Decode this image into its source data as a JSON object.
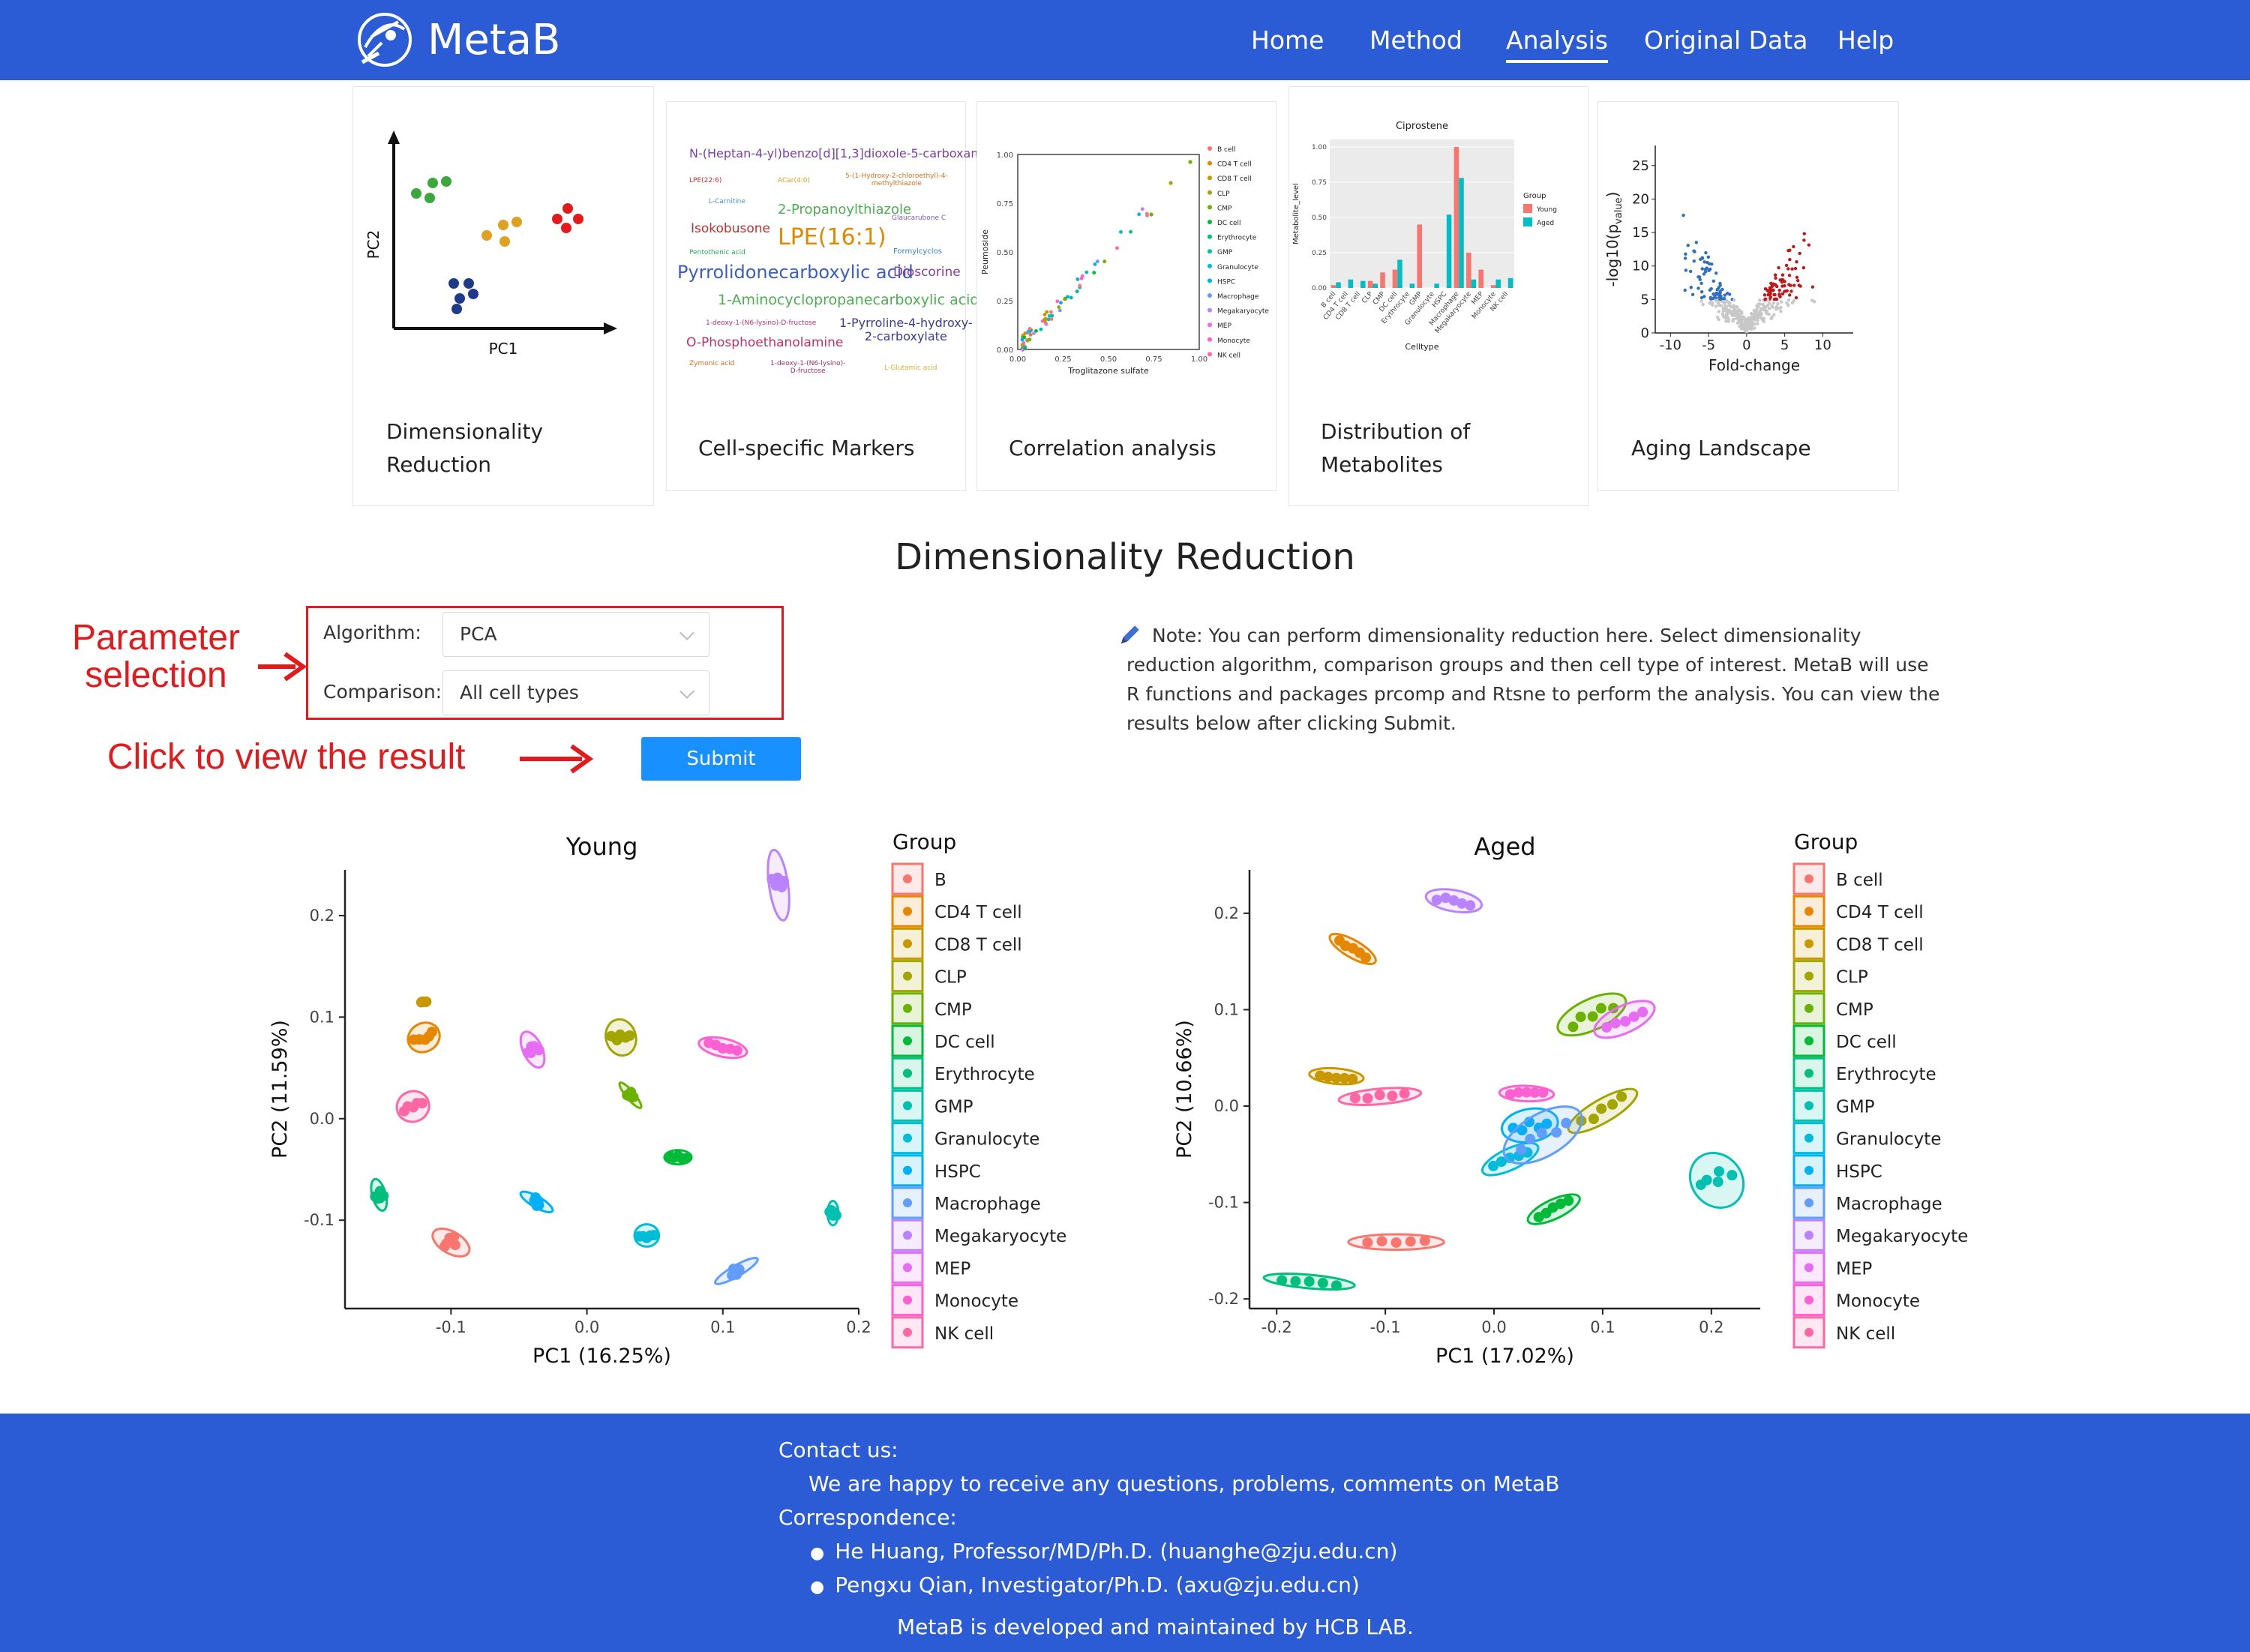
{
  "brand": {
    "name": "MetaB"
  },
  "nav": {
    "items": [
      "Home",
      "Method",
      "Analysis",
      "Original Data",
      "Help"
    ],
    "active": "Analysis"
  },
  "cards": [
    {
      "label": "Dimensionality\nReduction"
    },
    {
      "label": "Cell-specific Markers"
    },
    {
      "label": "Correlation analysis"
    },
    {
      "label": "Distribution of\nMetabolites"
    },
    {
      "label": "Aging Landscape"
    }
  ],
  "thumb_dr": {
    "xlabel": "PC1",
    "ylabel": "PC2"
  },
  "thumb_words": [
    "N-(Heptan-4-yl)benzo[d][1,3]dioxole-5-carboxamide",
    "LPE(22:6)",
    "ACar(4:0)",
    "5-(1-Hydroxy-2-chloroethyl)-4-\nmethylthiazole",
    "L-Carnitine",
    "2-Propanoylthiazole",
    "Glaucarubone C",
    "Isokobusone",
    "LPE(16:1)",
    "Pentothenic acid",
    "Formylcyclos",
    "Pyrrolidonecarboxylic acid",
    "Dioscorine",
    "1-Aminocyclopropanecarboxylic acid",
    "1-deoxy-1-(N6-lysino)-D-fructose",
    "1-Pyrroline-4-hydroxy-\n2-carboxylate",
    "O-Phosphoethanolamine",
    "Zymonic acid",
    "1-deoxy-1-(N6-lysino)-\nD-fructose",
    "L-Glutamic acid"
  ],
  "thumb_corr": {
    "xlabel": "Troglitazone sulfate",
    "ylabel": "Peumoside",
    "xticks": [
      "0.00",
      "0.25",
      "0.50",
      "0.75",
      "1.00"
    ],
    "yticks": [
      "0.00",
      "0.25",
      "0.50",
      "0.75",
      "1.00"
    ],
    "legend": [
      "B cell",
      "CD4 T cell",
      "CD8 T cell",
      "CLP",
      "CMP",
      "DC cell",
      "Erythrocyte",
      "GMP",
      "Granulocyte",
      "HSPC",
      "Macrophage",
      "Megakaryocyte",
      "MEP",
      "Monocyte",
      "NK cell"
    ]
  },
  "thumb_dist": {
    "title": "Ciprostene",
    "xlabel": "Celltype",
    "ylabel": "Metabolite_level",
    "yticks": [
      "0.00",
      "0.25",
      "0.50",
      "0.75",
      "1.00"
    ],
    "legend_title": "Group",
    "legend": [
      "Young",
      "Aged"
    ],
    "categories": [
      "B cell",
      "CD4 T cell",
      "CD8 T cell",
      "CLP",
      "CMP",
      "DC cell",
      "Erythrocyte",
      "GMP",
      "Granulocyte",
      "HSPC",
      "Macrophage",
      "Megakaryocyte",
      "MEP",
      "Monocyte",
      "NK cell"
    ],
    "young": [
      0.02,
      0.0,
      0.0,
      0.05,
      0.11,
      0.13,
      0.0,
      0.45,
      0.0,
      0.0,
      1.0,
      0.25,
      0.13,
      0.02,
      0.0
    ],
    "aged": [
      0.04,
      0.06,
      0.05,
      0.03,
      0.0,
      0.2,
      0.03,
      0.0,
      0.03,
      0.52,
      0.78,
      0.06,
      0.0,
      0.06,
      0.07
    ]
  },
  "thumb_volcano": {
    "xlabel": "Fold-change",
    "ylabel": "-log10(p",
    "ylabel_sub": "value",
    "ylabel_end": ")",
    "xticks": [
      "-10",
      "-5",
      "0",
      "5",
      "10"
    ],
    "yticks": [
      "0",
      "5",
      "10",
      "15",
      "20",
      "25"
    ]
  },
  "section_title": "Dimensionality Reduction",
  "form": {
    "algorithm_label": "Algorithm:",
    "algorithm_value": "PCA",
    "comparison_label": "Comparison:",
    "comparison_value": "All cell types",
    "submit_label": "Submit"
  },
  "annotations": {
    "param": "Parameter\nselection",
    "click": "Click to view the result"
  },
  "note": {
    "icon": "pencil-icon",
    "text": "Note: You can perform dimensionality reduction here. Select dimensionality reduction algorithm, comparison groups and then cell type of interest. MetaB will use R functions and packages prcomp and Rtsne to perform the analysis. You can view the results below after clicking Submit."
  },
  "colors": {
    "nav": "#2b5cd6",
    "button": "#1890ff",
    "annotation": "#e31a1c",
    "groups": [
      "#F8766D",
      "#E58700",
      "#C99800",
      "#A3A500",
      "#6BB100",
      "#00BA38",
      "#00BF7D",
      "#00C0AF",
      "#00BCD8",
      "#00B0F6",
      "#619CFF",
      "#B983FF",
      "#E76BF3",
      "#FD61D1",
      "#FF67A4"
    ]
  },
  "chart_data": [
    {
      "type": "scatter",
      "title": "Young",
      "xlabel": "PC1 (16.25%)",
      "ylabel": "PC2 (11.59%)",
      "xlim": [
        -0.178,
        0.2
      ],
      "ylim": [
        -0.187,
        0.245
      ],
      "xticks": [
        -0.1,
        0.0,
        0.1,
        0.2
      ],
      "yticks": [
        -0.1,
        0.0,
        0.1,
        0.2
      ],
      "xticklabels": [
        "-0.1",
        "0.0",
        "0.1",
        "0.2"
      ],
      "yticklabels": [
        "-0.1",
        "0.0",
        "0.1",
        "0.2"
      ],
      "legend_title": "Group",
      "legend_position": "right",
      "groups": [
        "B",
        "CD4 T cell",
        "CD8 T cell",
        "CLP",
        "CMP",
        "DC cell",
        "Erythrocyte",
        "GMP",
        "Granulocyte",
        "HSPC",
        "Macrophage",
        "Megakaryocyte",
        "MEP",
        "Monocyte",
        "NK cell"
      ],
      "centers": [
        [
          -0.1,
          -0.122
        ],
        [
          -0.12,
          0.08
        ],
        [
          -0.12,
          0.115
        ],
        [
          0.025,
          0.08
        ],
        [
          0.032,
          0.023
        ],
        [
          0.067,
          -0.038
        ],
        [
          -0.153,
          -0.075
        ],
        [
          0.181,
          -0.093
        ],
        [
          0.044,
          -0.115
        ],
        [
          -0.037,
          -0.082
        ],
        [
          0.11,
          -0.15
        ],
        [
          0.141,
          0.23
        ],
        [
          -0.04,
          0.068
        ],
        [
          0.1,
          0.07
        ],
        [
          -0.128,
          0.012
        ]
      ],
      "ellipses": [
        [
          0.008,
          0.02,
          60
        ],
        [
          0.012,
          0.014,
          30
        ],
        [
          0,
          0,
          0
        ],
        [
          0.011,
          0.018,
          15
        ],
        [
          0.003,
          0.016,
          40
        ],
        [
          0.01,
          0.007,
          0
        ],
        [
          0.005,
          0.016,
          15
        ],
        [
          0.004,
          0.012,
          0
        ],
        [
          0.009,
          0.011,
          0
        ],
        [
          0.004,
          0.018,
          60
        ],
        [
          0.004,
          0.024,
          120
        ],
        [
          0.007,
          0.035,
          8
        ],
        [
          0.007,
          0.019,
          25
        ],
        [
          0.018,
          0.009,
          168
        ],
        [
          0.012,
          0.015,
          20
        ]
      ],
      "points_per_group": 5
    },
    {
      "type": "scatter",
      "title": "Aged",
      "xlabel": "PC1 (17.02%)",
      "ylabel": "PC2 (10.66%)",
      "xlim": [
        -0.225,
        0.245
      ],
      "ylim": [
        -0.21,
        0.245
      ],
      "xticks": [
        -0.2,
        -0.1,
        0.0,
        0.1,
        0.2
      ],
      "yticks": [
        -0.2,
        -0.1,
        0.0,
        0.1,
        0.2
      ],
      "xticklabels": [
        "-0.2",
        "-0.1",
        "0.0",
        "0.1",
        "0.2"
      ],
      "yticklabels": [
        "-0.2",
        "-0.1",
        "0.0",
        "0.1",
        "0.2"
      ],
      "legend_title": "Group",
      "legend_position": "right",
      "groups": [
        "B cell",
        "CD4 T cell",
        "CD8 T cell",
        "CLP",
        "CMP",
        "DC cell",
        "Erythrocyte",
        "GMP",
        "Granulocyte",
        "HSPC",
        "Macrophage",
        "Megakaryocyte",
        "MEP",
        "Monocyte",
        "NK cell"
      ],
      "centers": [
        [
          -0.09,
          -0.141
        ],
        [
          -0.13,
          0.163
        ],
        [
          -0.145,
          0.031
        ],
        [
          0.1,
          -0.005
        ],
        [
          0.09,
          0.095
        ],
        [
          0.055,
          -0.107
        ],
        [
          -0.17,
          -0.182
        ],
        [
          0.205,
          -0.077
        ],
        [
          0.015,
          -0.055
        ],
        [
          0.033,
          -0.02
        ],
        [
          0.045,
          -0.03
        ],
        [
          -0.037,
          0.213
        ],
        [
          0.12,
          0.09
        ],
        [
          0.03,
          0.013
        ],
        [
          -0.105,
          0.01
        ]
      ],
      "ellipses": [
        [
          0.044,
          0.008,
          0
        ],
        [
          0.024,
          0.009,
          150
        ],
        [
          0.025,
          0.008,
          175
        ],
        [
          0.036,
          0.012,
          30
        ],
        [
          0.034,
          0.016,
          25
        ],
        [
          0.026,
          0.01,
          25
        ],
        [
          0.042,
          0.007,
          175
        ],
        [
          0.023,
          0.03,
          40
        ],
        [
          0.028,
          0.011,
          25
        ],
        [
          0.026,
          0.017,
          10
        ],
        [
          0.04,
          0.022,
          30
        ],
        [
          0.026,
          0.011,
          170
        ],
        [
          0.03,
          0.014,
          25
        ],
        [
          0.025,
          0.008,
          178
        ],
        [
          0.038,
          0.008,
          5
        ]
      ],
      "points_per_group": 5
    }
  ]
}
